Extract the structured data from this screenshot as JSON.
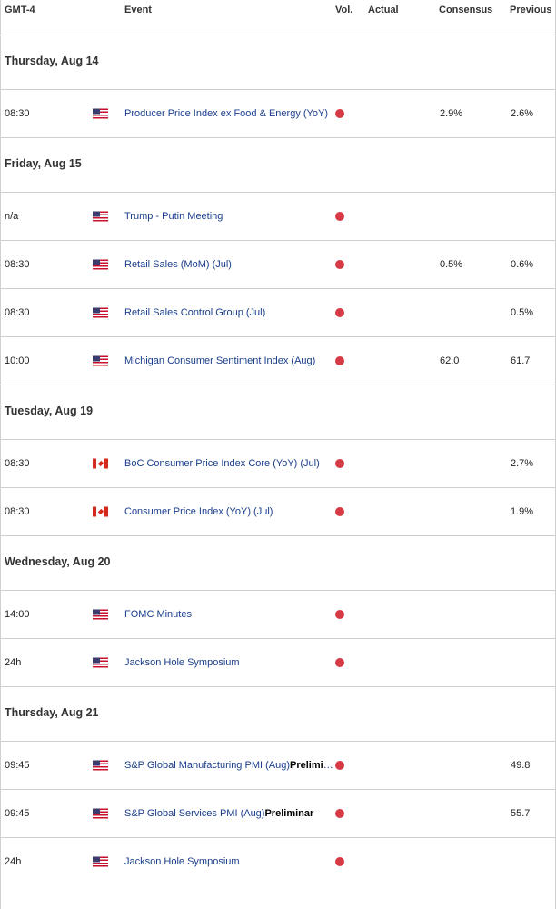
{
  "header": {
    "timezone": "GMT-4",
    "event": "Event",
    "vol": "Vol.",
    "actual": "Actual",
    "consensus": "Consensus",
    "previous": "Previous"
  },
  "colors": {
    "accent_link": "#1a3e8c",
    "volatility_dot": "#d63a44",
    "divider": "#cfcfcf"
  },
  "sections": [
    {
      "day": "Thursday, Aug 14",
      "events": [
        {
          "time": "08:30",
          "flag": "us-flag-icon",
          "event": "Producer Price Index ex Food & Energy (YoY)",
          "bold": "",
          "consensus": "2.9%",
          "previous": "2.6%"
        }
      ]
    },
    {
      "day": "Friday, Aug 15",
      "events": [
        {
          "time": "n/a",
          "flag": "us-flag-icon",
          "event": "Trump - Putin Meeting",
          "bold": "",
          "consensus": "",
          "previous": ""
        },
        {
          "time": "08:30",
          "flag": "us-flag-icon",
          "event": "Retail Sales (MoM) (Jul)",
          "bold": "",
          "consensus": "0.5%",
          "previous": "0.6%"
        },
        {
          "time": "08:30",
          "flag": "us-flag-icon",
          "event": "Retail Sales Control Group (Jul)",
          "bold": "",
          "consensus": "",
          "previous": "0.5%"
        },
        {
          "time": "10:00",
          "flag": "us-flag-icon",
          "event": "Michigan Consumer Sentiment Index (Aug)",
          "bold": "",
          "consensus": "62.0",
          "previous": "61.7"
        }
      ]
    },
    {
      "day": "Tuesday, Aug 19",
      "events": [
        {
          "time": "08:30",
          "flag": "ca-flag-icon",
          "event": "BoC Consumer Price Index Core (YoY) (Jul)",
          "bold": "",
          "consensus": "",
          "previous": "2.7%"
        },
        {
          "time": "08:30",
          "flag": "ca-flag-icon",
          "event": "Consumer Price Index (YoY) (Jul)",
          "bold": "",
          "consensus": "",
          "previous": "1.9%"
        }
      ]
    },
    {
      "day": "Wednesday, Aug 20",
      "events": [
        {
          "time": "14:00",
          "flag": "us-flag-icon",
          "event": "FOMC Minutes",
          "bold": "",
          "consensus": "",
          "previous": ""
        },
        {
          "time": "24h",
          "flag": "us-flag-icon",
          "event": "Jackson Hole Symposium",
          "bold": "",
          "consensus": "",
          "previous": ""
        }
      ]
    },
    {
      "day": "Thursday, Aug 21",
      "events": [
        {
          "time": "09:45",
          "flag": "us-flag-icon",
          "event": "S&P Global Manufacturing PMI (Aug)",
          "bold": "Preliminar",
          "consensus": "",
          "previous": "49.8"
        },
        {
          "time": "09:45",
          "flag": "us-flag-icon",
          "event": "S&P Global Services PMI (Aug)",
          "bold": "Preliminar",
          "consensus": "",
          "previous": "55.7"
        },
        {
          "time": "24h",
          "flag": "us-flag-icon",
          "event": "Jackson Hole Symposium",
          "bold": "",
          "consensus": "",
          "previous": ""
        }
      ]
    }
  ]
}
